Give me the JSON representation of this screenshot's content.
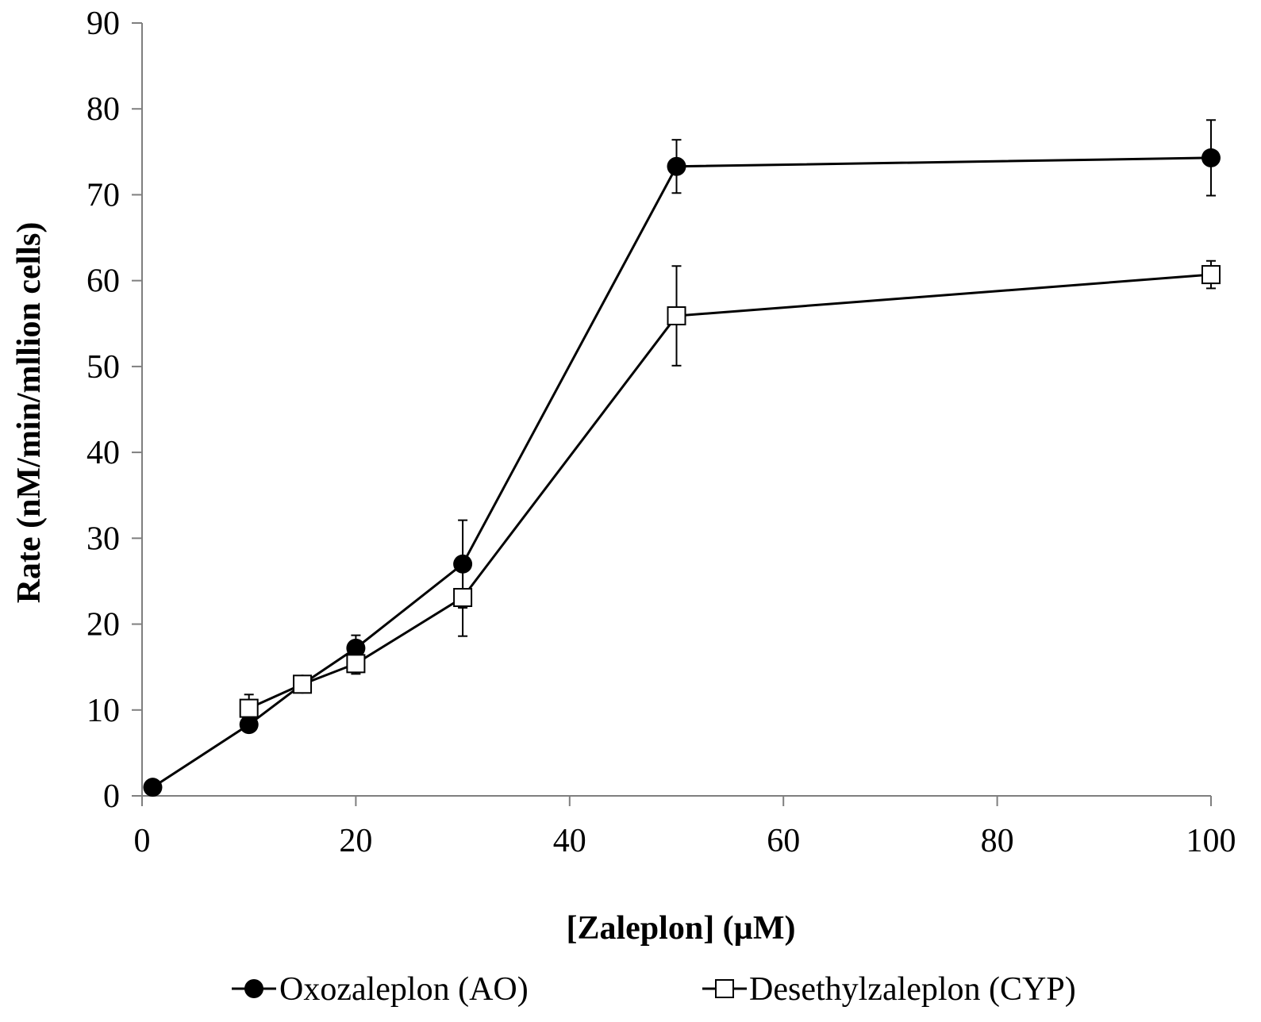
{
  "chart_data": {
    "type": "line",
    "title": "",
    "xlabel": "[Zaleplon] (µM)",
    "ylabel": "Rate (nM/min/mllion cells)",
    "xlim": [
      0,
      100
    ],
    "ylim": [
      0,
      90
    ],
    "x_ticks": [
      0,
      20,
      40,
      60,
      80,
      100
    ],
    "y_ticks": [
      0,
      10,
      20,
      30,
      40,
      50,
      60,
      70,
      80,
      90
    ],
    "grid": false,
    "legend_position": "bottom",
    "series": [
      {
        "name": "Oxozaleplon (AO)",
        "marker": "filled-circle",
        "color": "#000000",
        "x": [
          1,
          10,
          15,
          20,
          30,
          50,
          100
        ],
        "y": [
          1.0,
          8.3,
          13.0,
          17.2,
          27.0,
          73.3,
          74.3
        ],
        "error": [
          0,
          0,
          0,
          1.5,
          5.1,
          3.1,
          4.4
        ]
      },
      {
        "name": "Desethylzaleplon (CYP)",
        "marker": "open-square",
        "color": "#000000",
        "x": [
          10,
          15,
          20,
          30,
          50,
          100
        ],
        "y": [
          10.2,
          13.0,
          15.4,
          23.1,
          55.9,
          60.7
        ],
        "error": [
          1.6,
          0,
          1.2,
          4.5,
          5.8,
          1.6
        ]
      }
    ]
  }
}
